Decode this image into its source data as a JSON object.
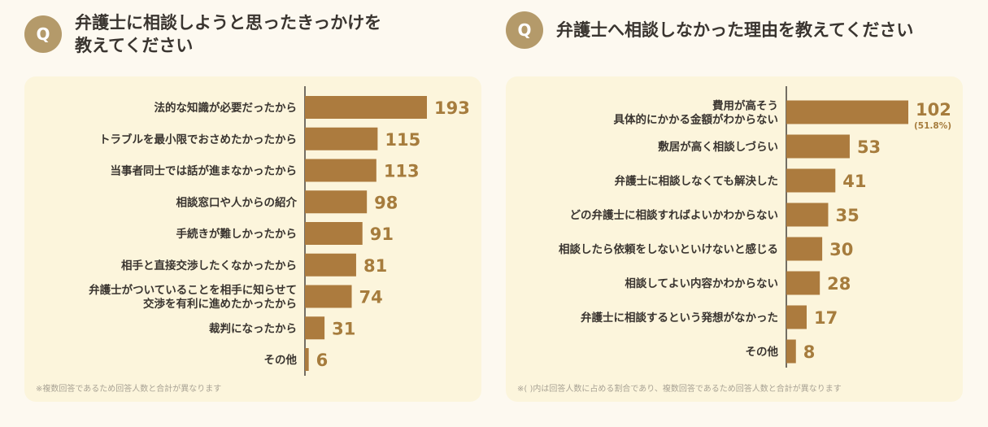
{
  "chart_data": [
    {
      "type": "bar",
      "orientation": "horizontal",
      "title": "弁護士に相談しようと思ったきっかけを\n教えてください",
      "badge": "Q",
      "categories": [
        "法的な知識が必要だったから",
        "トラブルを最小限でおさめたかったから",
        "当事者同士では話が進まなかったから",
        "相談窓口や人からの紹介",
        "手続きが難しかったから",
        "相手と直接交渉したくなかったから",
        "弁護士がついていることを相手に知らせて\n交渉を有利に進めたかったから",
        "裁判になったから",
        "その他"
      ],
      "values": [
        193,
        115,
        113,
        98,
        91,
        81,
        74,
        31,
        6
      ],
      "note": "※複数回答であるため回答人数と合計が異なります"
    },
    {
      "type": "bar",
      "orientation": "horizontal",
      "title": "弁護士へ相談しなかった理由を教えてください",
      "badge": "Q",
      "categories": [
        "費用が高そう\n具体的にかかる金額がわからない",
        "敷居が高く相談しづらい",
        "弁護士に相談しなくても解決した",
        "どの弁護士に相談すればよいかわからない",
        "相談したら依頼をしないといけないと感じる",
        "相談してよい内容かわからない",
        "弁護士に相談するという発想がなかった",
        "その他"
      ],
      "values": [
        102,
        53,
        41,
        35,
        30,
        28,
        17,
        8
      ],
      "percent_labels": [
        "(51.8%)",
        "",
        "",
        "",
        "",
        "",
        "",
        ""
      ],
      "note": "※( )内は回答人数に占める割合であり、複数回答であるため回答人数と合計が異なります"
    }
  ],
  "colors": {
    "bar": "#ac7b3e",
    "value_text": "#a67c3d",
    "badge": "#b49a6a",
    "card": "#fcf5dc",
    "background": "#fdf9f0"
  }
}
